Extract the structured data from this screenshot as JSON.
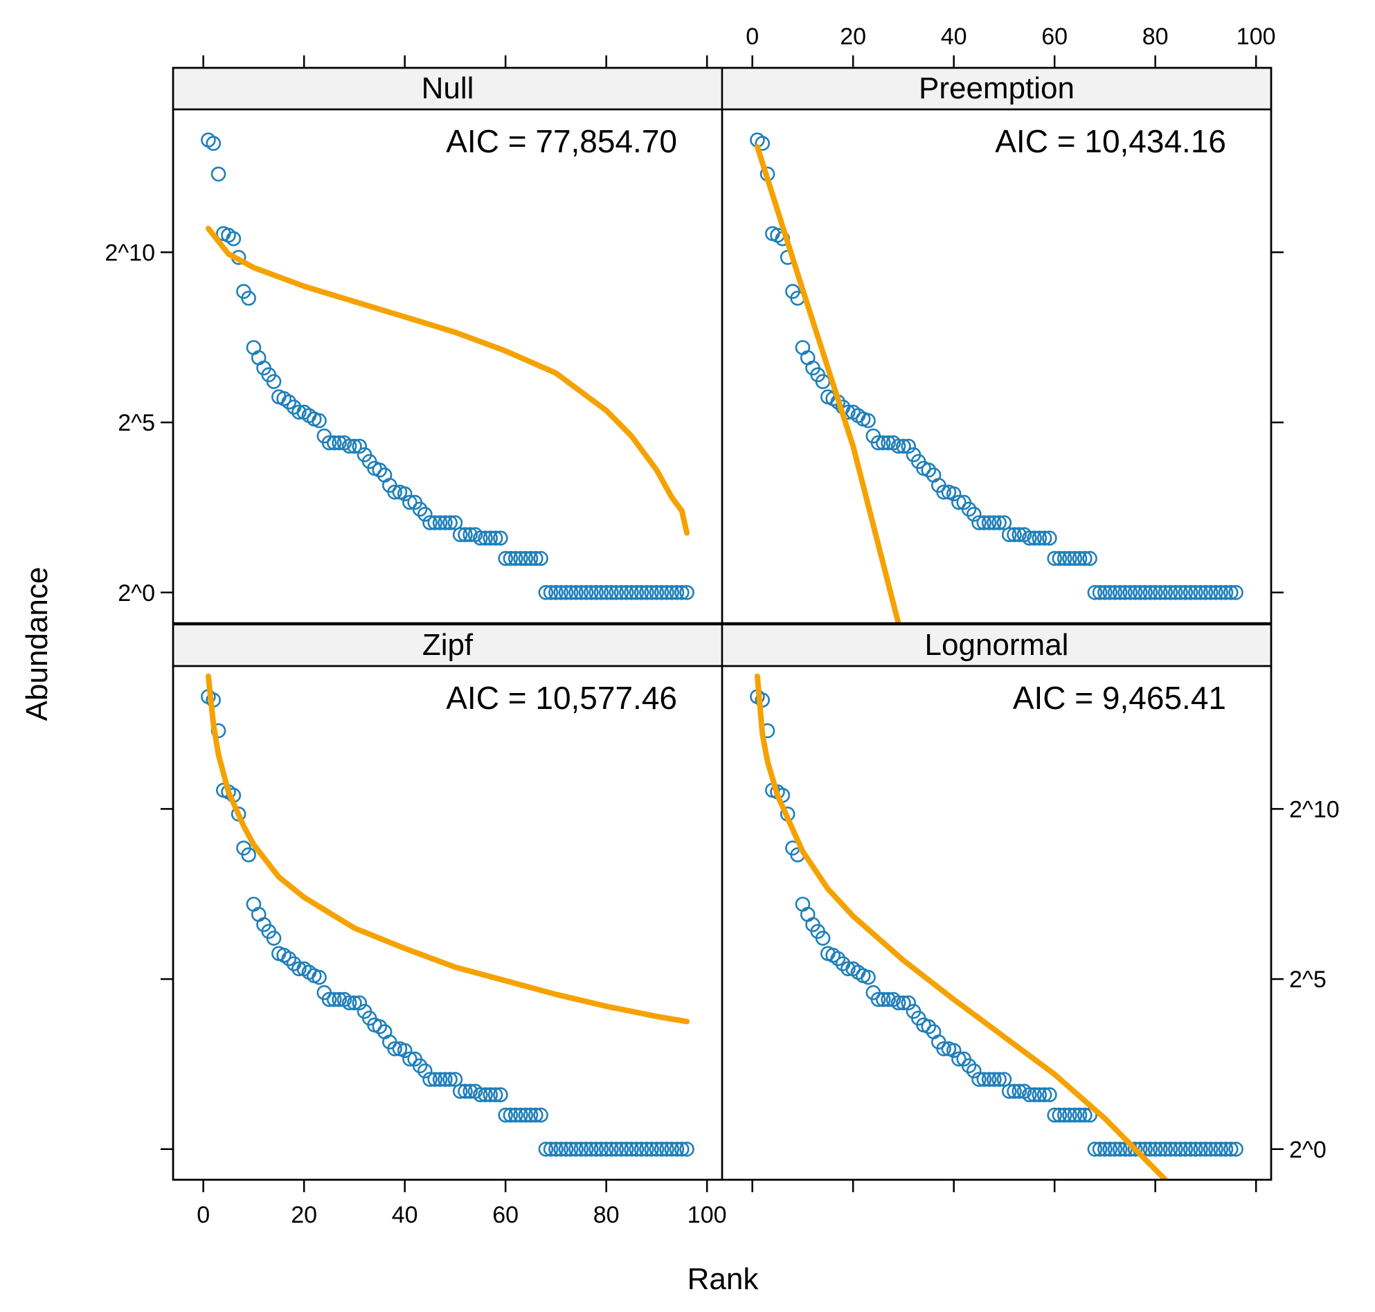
{
  "chart_data": {
    "type": "scatter",
    "layout": "2x2 trellis",
    "xlabel": "Rank",
    "ylabel": "Abundance",
    "xlim": [
      -6,
      103
    ],
    "x_ticks": [
      0,
      20,
      40,
      60,
      80,
      100
    ],
    "y_scale": "log2",
    "ylim_log2": [
      -0.9,
      14.2
    ],
    "y_ticks": [
      {
        "value": 0,
        "label": "2^0"
      },
      {
        "value": 5,
        "label": "2^5"
      },
      {
        "value": 10,
        "label": "2^10"
      }
    ],
    "grid": false,
    "colors": {
      "points": "#1f7fba",
      "fit": "#f5a200",
      "strip": "#f2f2f2"
    },
    "observed": {
      "x": [
        1,
        2,
        3,
        4,
        5,
        6,
        7,
        8,
        9,
        10,
        11,
        12,
        13,
        14,
        15,
        16,
        17,
        18,
        19,
        20,
        21,
        22,
        23,
        24,
        25,
        26,
        27,
        28,
        29,
        30,
        31,
        32,
        33,
        34,
        35,
        36,
        37,
        38,
        39,
        40,
        41,
        42,
        43,
        44,
        45,
        46,
        47,
        48,
        49,
        50,
        51,
        52,
        53,
        54,
        55,
        56,
        57,
        58,
        59,
        60,
        61,
        62,
        63,
        64,
        65,
        66,
        67,
        68,
        69,
        70,
        71,
        72,
        73,
        74,
        75,
        76,
        77,
        78,
        79,
        80,
        81,
        82,
        83,
        84,
        85,
        86,
        87,
        88,
        89,
        90,
        91,
        92,
        93,
        94,
        95,
        96
      ],
      "y_log2": [
        13.3,
        13.2,
        12.3,
        10.55,
        10.5,
        10.4,
        9.85,
        8.85,
        8.65,
        7.2,
        6.9,
        6.6,
        6.4,
        6.2,
        5.75,
        5.7,
        5.6,
        5.45,
        5.3,
        5.3,
        5.2,
        5.1,
        5.05,
        4.6,
        4.4,
        4.4,
        4.4,
        4.4,
        4.3,
        4.3,
        4.3,
        4.05,
        3.85,
        3.65,
        3.6,
        3.45,
        3.15,
        2.95,
        2.95,
        2.9,
        2.65,
        2.65,
        2.45,
        2.3,
        2.05,
        2.05,
        2.05,
        2.05,
        2.05,
        2.05,
        1.7,
        1.7,
        1.7,
        1.7,
        1.6,
        1.6,
        1.6,
        1.6,
        1.6,
        1.0,
        1.0,
        1.0,
        1.0,
        1.0,
        1.0,
        1.0,
        1.0,
        0,
        0,
        0,
        0,
        0,
        0,
        0,
        0,
        0,
        0,
        0,
        0,
        0,
        0,
        0,
        0,
        0,
        0,
        0,
        0,
        0,
        0,
        0,
        0,
        0,
        0,
        0,
        0,
        0
      ]
    },
    "panels": [
      {
        "name": "Null",
        "aic_label": "AIC = 77,854.70",
        "fit": {
          "x": [
            1,
            5,
            10,
            20,
            30,
            40,
            50,
            60,
            70,
            80,
            85,
            90,
            93,
            95,
            96
          ],
          "y_log2": [
            10.7,
            9.95,
            9.55,
            9.0,
            8.55,
            8.1,
            7.65,
            7.1,
            6.45,
            5.35,
            4.6,
            3.6,
            2.8,
            2.4,
            1.75
          ]
        }
      },
      {
        "name": "Preemption",
        "aic_label": "AIC = 10,434.16",
        "fit": {
          "x": [
            1,
            10,
            20,
            29
          ],
          "y_log2": [
            13.1,
            8.9,
            4.3,
            -0.9
          ]
        }
      },
      {
        "name": "Zipf",
        "aic_label": "AIC = 10,577.46",
        "fit": {
          "x": [
            1,
            2,
            3,
            5,
            8,
            10,
            15,
            20,
            30,
            40,
            50,
            60,
            70,
            80,
            90,
            96
          ],
          "y_log2": [
            13.9,
            12.5,
            11.6,
            10.5,
            9.5,
            8.95,
            8.0,
            7.4,
            6.5,
            5.9,
            5.35,
            4.95,
            4.55,
            4.2,
            3.9,
            3.75
          ]
        }
      },
      {
        "name": "Lognormal",
        "aic_label": "AIC = 9,465.41",
        "fit": {
          "x": [
            1,
            2,
            3,
            5,
            8,
            10,
            15,
            20,
            30,
            40,
            50,
            60,
            65,
            70,
            75,
            82
          ],
          "y_log2": [
            13.9,
            12.2,
            11.4,
            10.4,
            9.4,
            8.75,
            7.65,
            6.85,
            5.55,
            4.4,
            3.3,
            2.2,
            1.55,
            0.9,
            0.15,
            -0.9
          ]
        }
      }
    ]
  }
}
